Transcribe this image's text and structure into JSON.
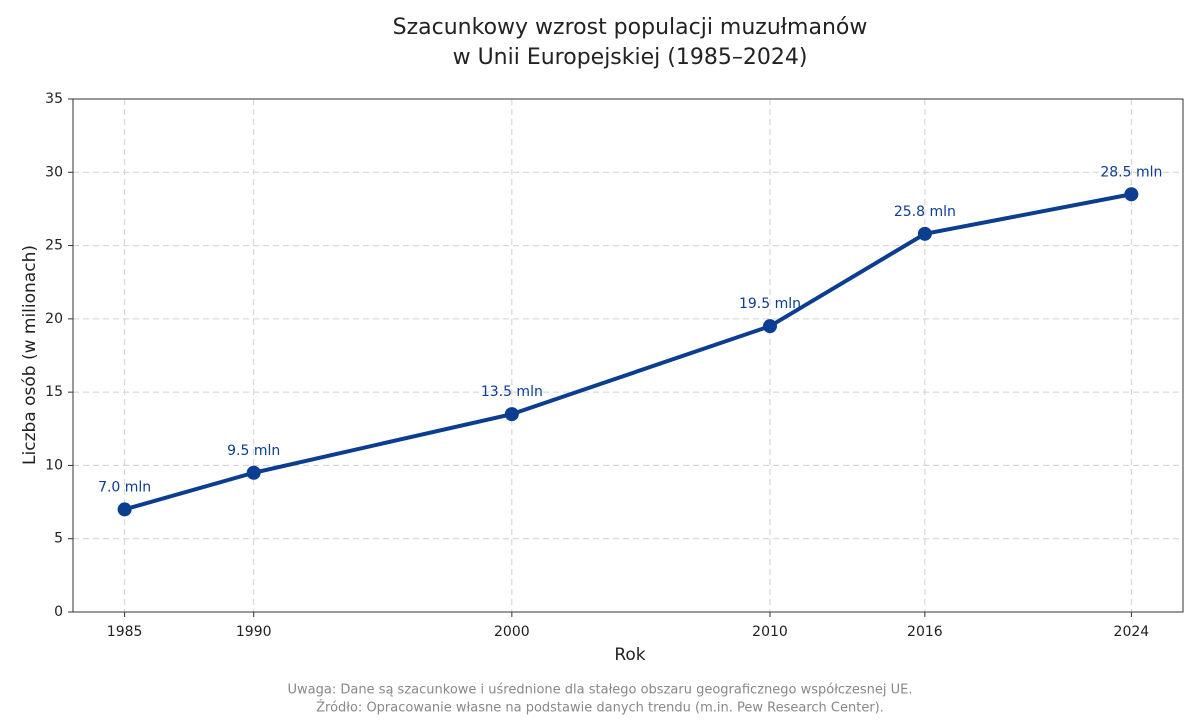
{
  "chart_data": {
    "type": "line",
    "title": [
      "Szacunkowy wzrost populacji muzułmanów",
      "w Unii Europejskiej (1985–2024)"
    ],
    "x": [
      1985,
      1990,
      2000,
      2010,
      2016,
      2024
    ],
    "values": [
      7.0,
      9.5,
      13.5,
      19.5,
      25.8,
      28.5
    ],
    "value_labels": [
      "7.0 mln",
      "9.5 mln",
      "13.5 mln",
      "19.5 mln",
      "25.8 mln",
      "28.5 mln"
    ],
    "color": "#0b3d91",
    "xlabel": "Rok",
    "ylabel": "Liczba osób (w milionach)",
    "xlim": [
      1983,
      2026
    ],
    "xticks": [
      1985,
      1990,
      2000,
      2010,
      2016,
      2024
    ],
    "ylim": [
      0,
      35
    ],
    "yticks": [
      0,
      5,
      10,
      15,
      20,
      25,
      30,
      35
    ],
    "grid": true,
    "notes": [
      "Uwaga: Dane są szacunkowe i uśrednione dla stałego obszaru geograficznego współczesnej UE.",
      "Źródło: Opracowanie własne na podstawie danych trendu (m.in. Pew Research Center)."
    ]
  }
}
